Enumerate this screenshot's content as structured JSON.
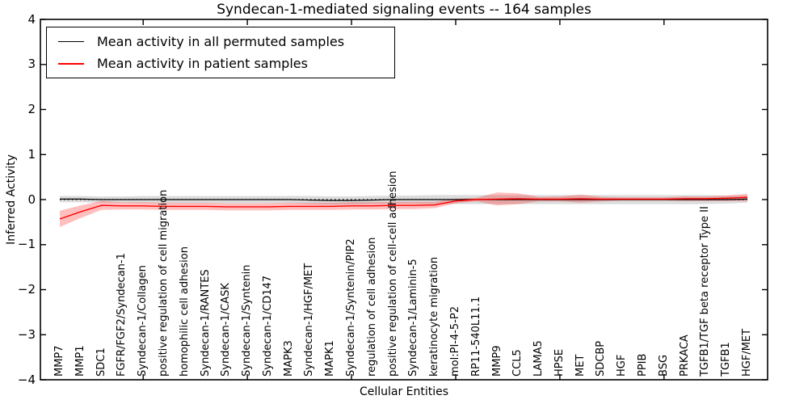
{
  "title": "Syndecan-1-mediated signaling events -- 164 samples",
  "axes": {
    "xlabel": "Cellular Entities",
    "ylabel": "Inferred Activity",
    "ytick_labels": [
      "4",
      "3",
      "2",
      "1",
      "0",
      "−1",
      "−2",
      "−3",
      "−4"
    ],
    "ytick_values": [
      4,
      3,
      2,
      1,
      0,
      -1,
      -2,
      -3,
      -4
    ],
    "xtick_major_indices": [
      4,
      9,
      14,
      19,
      24,
      29
    ]
  },
  "legend": {
    "entries": [
      {
        "label": "Mean activity in all permuted samples",
        "color": "#000000"
      },
      {
        "label": "Mean activity in patient samples",
        "color": "#ff0000"
      }
    ],
    "position": "upper-left"
  },
  "colors": {
    "permuted_line": "#000000",
    "patient_line": "#ff0000",
    "permuted_band": "rgba(128,128,128,0.28)",
    "patient_band": "rgba(255,0,0,0.25)",
    "frame": "#000000"
  },
  "chart_data": {
    "type": "line",
    "title": "Syndecan-1-mediated signaling events -- 164 samples",
    "xlabel": "Cellular Entities",
    "ylabel": "Inferred Activity",
    "ylim": [
      -4,
      4
    ],
    "grid": false,
    "legend_position": "upper-left",
    "zero_line_style": "dotted",
    "categories": [
      "MMP7",
      "MMP1",
      "SDC1",
      "FGFR/FGF2/Syndecan-1",
      "Syndecan-1/Collagen",
      "positive regulation of cell migration",
      "homophilic cell adhesion",
      "Syndecan-1/RANTES",
      "Syndecan-1/CASK",
      "Syndecan-1/Syntenin",
      "Syndecan-1/CD147",
      "MAPK3",
      "Syndecan-1/HGF/MET",
      "MAPK1",
      "Syndecan-1/Syntenin/PIP2",
      "regulation of cell adhesion",
      "positive regulation of cell-cell adhesion",
      "Syndecan-1/Laminin-5",
      "keratinocyte migration",
      "mol:PI-4-5-P2",
      "RP11-540L11.1",
      "MMP9",
      "CCL5",
      "LAMA5",
      "HPSE",
      "MET",
      "SDCBP",
      "HGF",
      "PPIB",
      "BSG",
      "PRKACA",
      "TGFB1/TGF beta receptor Type II",
      "TGFB1",
      "HGF/MET"
    ],
    "series": [
      {
        "name": "Mean activity in all permuted samples",
        "key": "permuted-mean",
        "color": "#000000",
        "width": 1.2,
        "values": [
          0.01,
          0.01,
          0.0,
          0.0,
          0.0,
          0.0,
          0.0,
          0.0,
          0.0,
          0.0,
          0.0,
          0.0,
          -0.01,
          -0.02,
          -0.02,
          -0.01,
          0.0,
          0.0,
          0.0,
          0.0,
          0.0,
          0.0,
          0.0,
          0.0,
          0.0,
          0.0,
          0.0,
          0.0,
          0.0,
          0.0,
          0.0,
          0.0,
          0.0,
          0.01
        ]
      },
      {
        "name": "Mean activity in patient samples",
        "key": "patient-mean",
        "color": "#ff0000",
        "width": 1.4,
        "values": [
          -0.43,
          -0.27,
          -0.13,
          -0.14,
          -0.14,
          -0.15,
          -0.15,
          -0.15,
          -0.16,
          -0.16,
          -0.16,
          -0.15,
          -0.15,
          -0.15,
          -0.14,
          -0.14,
          -0.13,
          -0.13,
          -0.12,
          -0.03,
          0.0,
          0.01,
          0.02,
          0.01,
          0.01,
          0.02,
          0.01,
          0.01,
          0.01,
          0.01,
          0.02,
          0.02,
          0.03,
          0.05
        ]
      }
    ],
    "bands": [
      {
        "name": "permuted std band",
        "key": "permuted-std-band",
        "color": "rgba(128,128,128,0.28)",
        "upper": [
          0.08,
          0.08,
          0.07,
          0.07,
          0.08,
          0.08,
          0.08,
          0.08,
          0.08,
          0.08,
          0.08,
          0.08,
          0.08,
          0.07,
          0.07,
          0.08,
          0.09,
          0.09,
          0.1,
          0.1,
          0.1,
          0.1,
          0.1,
          0.1,
          0.1,
          0.1,
          0.1,
          0.1,
          0.1,
          0.1,
          0.1,
          0.1,
          0.09,
          0.09
        ],
        "lower": [
          -0.06,
          -0.06,
          -0.07,
          -0.07,
          -0.08,
          -0.08,
          -0.08,
          -0.08,
          -0.08,
          -0.08,
          -0.08,
          -0.08,
          -0.1,
          -0.11,
          -0.11,
          -0.1,
          -0.09,
          -0.09,
          -0.1,
          -0.1,
          -0.1,
          -0.1,
          -0.1,
          -0.1,
          -0.1,
          -0.1,
          -0.1,
          -0.1,
          -0.1,
          -0.1,
          -0.1,
          -0.1,
          -0.09,
          -0.07
        ]
      },
      {
        "name": "patient std band",
        "key": "patient-std-band",
        "color": "rgba(255,0,0,0.25)",
        "upper": [
          -0.25,
          -0.13,
          -0.03,
          -0.06,
          -0.06,
          -0.07,
          -0.07,
          -0.07,
          -0.08,
          -0.08,
          -0.08,
          -0.07,
          -0.07,
          -0.07,
          -0.06,
          -0.06,
          -0.05,
          -0.05,
          -0.05,
          0.02,
          0.04,
          0.16,
          0.14,
          0.06,
          0.07,
          0.11,
          0.06,
          0.05,
          0.05,
          0.05,
          0.07,
          0.07,
          0.09,
          0.13
        ],
        "lower": [
          -0.61,
          -0.41,
          -0.23,
          -0.22,
          -0.22,
          -0.23,
          -0.23,
          -0.23,
          -0.24,
          -0.24,
          -0.24,
          -0.23,
          -0.23,
          -0.23,
          -0.22,
          -0.22,
          -0.21,
          -0.21,
          -0.19,
          -0.08,
          -0.04,
          -0.13,
          -0.1,
          -0.04,
          -0.04,
          -0.07,
          -0.04,
          -0.02,
          -0.02,
          -0.02,
          -0.03,
          -0.03,
          -0.03,
          -0.03
        ]
      }
    ]
  }
}
